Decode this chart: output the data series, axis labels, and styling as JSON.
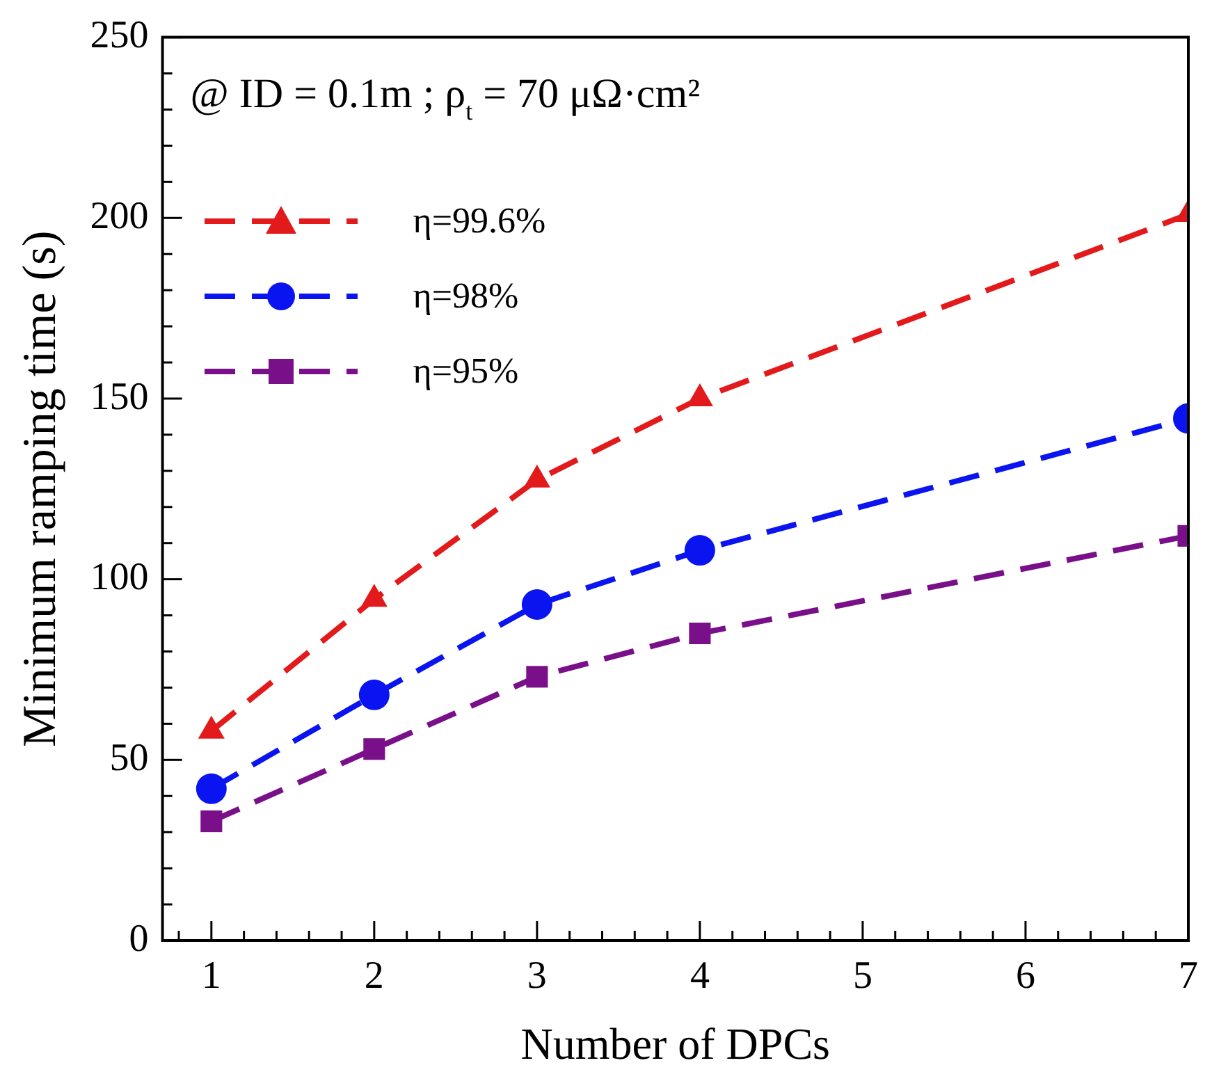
{
  "chart_data": {
    "type": "line",
    "xlabel": "Number of DPCs",
    "ylabel": "Minimum ramping time (s)",
    "annotations": [
      "@ ID = 0.1m ; ρ$_{t}$ = 70 μΩ·cm²"
    ],
    "x": [
      1,
      2,
      3,
      4,
      7
    ],
    "series": [
      {
        "name": "η=99.6%",
        "color": "#e31a1c",
        "marker": "triangle",
        "values": [
          58,
          94.5,
          127.5,
          150,
          201
        ]
      },
      {
        "name": "η=98%",
        "color": "#0a14f0",
        "marker": "circle",
        "values": [
          42,
          68,
          93,
          108,
          144.5
        ]
      },
      {
        "name": "η=95%",
        "color": "#7a0f8a",
        "marker": "square",
        "values": [
          33,
          53,
          73,
          85,
          112
        ]
      }
    ],
    "xlim": [
      0.7,
      7
    ],
    "xticks": [
      {
        "value": 0.8,
        "label": null
      },
      1,
      {
        "value": 1.2,
        "label": null
      },
      {
        "value": 1.4,
        "label": null
      },
      {
        "value": 1.6,
        "label": null
      },
      {
        "value": 1.8,
        "label": null
      },
      2,
      {
        "value": 2.2,
        "label": null
      },
      {
        "value": 2.4,
        "label": null
      },
      {
        "value": 2.6,
        "label": null
      },
      {
        "value": 2.8,
        "label": null
      },
      3,
      {
        "value": 3.2,
        "label": null
      },
      {
        "value": 3.4,
        "label": null
      },
      {
        "value": 3.6,
        "label": null
      },
      {
        "value": 3.8,
        "label": null
      },
      4,
      {
        "value": 4.2,
        "label": null
      },
      {
        "value": 4.4,
        "label": null
      },
      {
        "value": 4.6,
        "label": null
      },
      {
        "value": 4.8,
        "label": null
      },
      5,
      {
        "value": 5.2,
        "label": null
      },
      {
        "value": 5.4,
        "label": null
      },
      {
        "value": 5.6,
        "label": null
      },
      {
        "value": 5.8,
        "label": null
      },
      6,
      {
        "value": 6.2,
        "label": null
      },
      {
        "value": 6.4,
        "label": null
      },
      {
        "value": 6.6,
        "label": null
      },
      {
        "value": 6.8,
        "label": null
      },
      7
    ],
    "ylim": [
      0,
      250
    ],
    "yticks": [
      0,
      {
        "value": 10,
        "label": null
      },
      {
        "value": 20,
        "label": null
      },
      {
        "value": 30,
        "label": null
      },
      {
        "value": 40,
        "label": null
      },
      50,
      {
        "value": 60,
        "label": null
      },
      {
        "value": 70,
        "label": null
      },
      {
        "value": 80,
        "label": null
      },
      {
        "value": 90,
        "label": null
      },
      100,
      {
        "value": 110,
        "label": null
      },
      {
        "value": 120,
        "label": null
      },
      {
        "value": 130,
        "label": null
      },
      {
        "value": 140,
        "label": null
      },
      150,
      {
        "value": 160,
        "label": null
      },
      {
        "value": 170,
        "label": null
      },
      {
        "value": 180,
        "label": null
      },
      {
        "value": 190,
        "label": null
      },
      200,
      {
        "value": 210,
        "label": null
      },
      {
        "value": 220,
        "label": null
      },
      {
        "value": 230,
        "label": null
      },
      {
        "value": 240,
        "label": null
      },
      250
    ],
    "grid": false,
    "legend": "top left",
    "line_style": "dashed"
  }
}
